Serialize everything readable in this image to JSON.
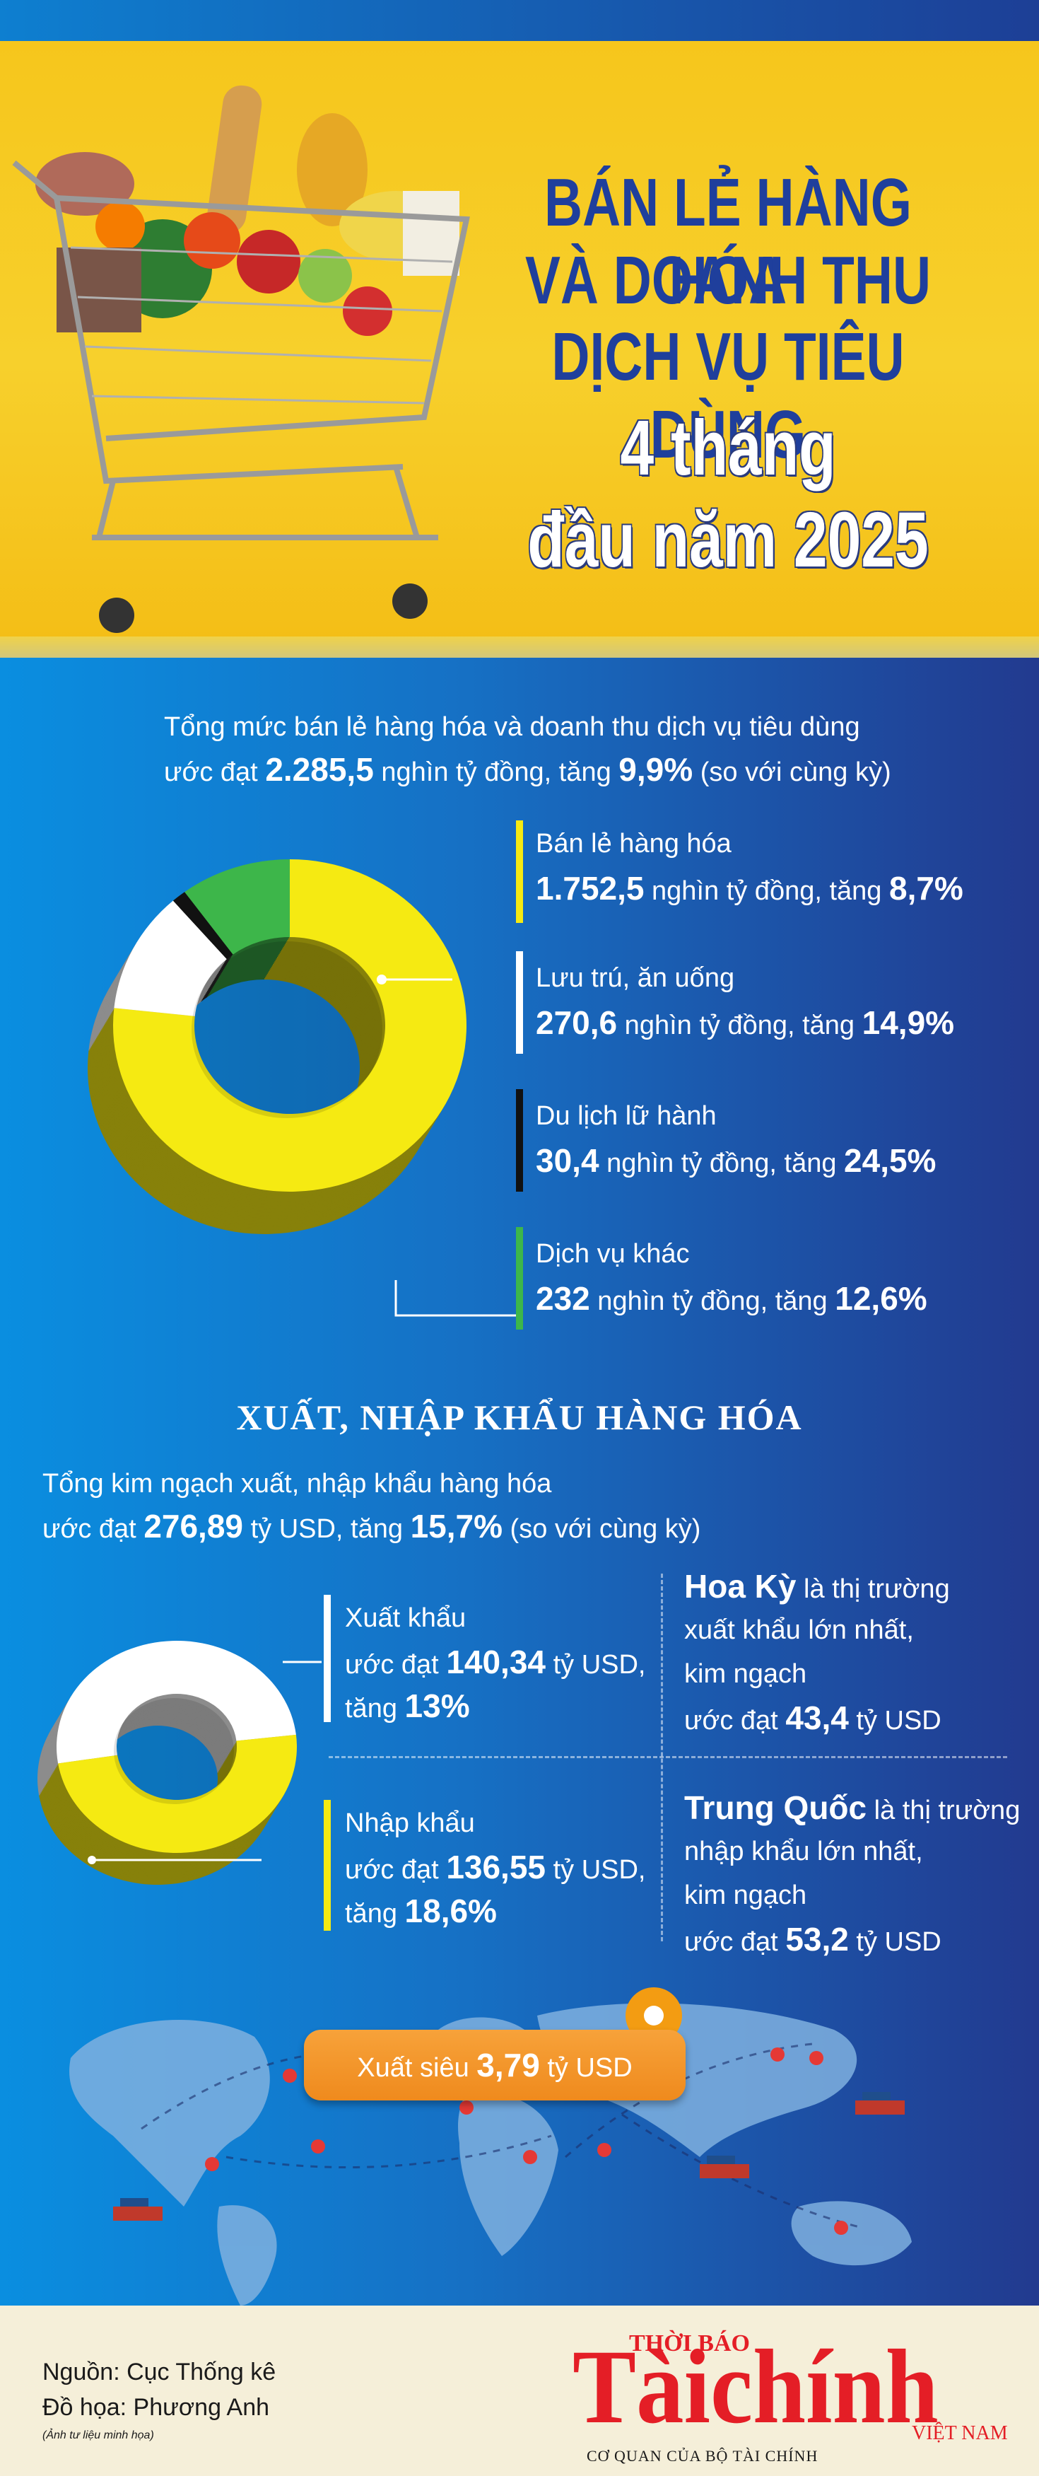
{
  "title": {
    "line1": "BÁN LẺ HÀNG HÓA",
    "line2": "VÀ DOANH THU",
    "line3": "DỊCH VỤ TIÊU DÙNG",
    "line4": "4 tháng",
    "line5": "đầu năm 2025"
  },
  "retail": {
    "summary_line1": "Tổng mức bán lẻ hàng hóa và doanh thu dịch vụ tiêu dùng",
    "summary_prefix": "ước đạt ",
    "summary_value": "2.285,5",
    "summary_mid": " nghìn tỷ đồng, tăng ",
    "summary_growth": "9,9%",
    "summary_suffix": " (so với cùng kỳ)",
    "items": [
      {
        "label": "Bán lẻ hàng hóa",
        "value": "1.752,5",
        "unit": " nghìn tỷ đồng, tăng ",
        "growth": "8,7%",
        "color": "#f5ea12"
      },
      {
        "label": "Lưu trú, ăn uống",
        "value": "270,6",
        "unit": " nghìn tỷ đồng, tăng ",
        "growth": "14,9%",
        "color": "#ffffff"
      },
      {
        "label": "Du lịch lữ hành",
        "value": "30,4",
        "unit": " nghìn tỷ đồng, tăng ",
        "growth": "24,5%",
        "color": "#111111"
      },
      {
        "label": "Dịch vụ khác",
        "value": "232",
        "unit": " nghìn tỷ đồng, tăng ",
        "growth": "12,6%",
        "color": "#3db64a"
      }
    ]
  },
  "trade": {
    "section_title": "XUẤT, NHẬP KHẨU HÀNG HÓA",
    "summary_line1": "Tổng kim ngạch xuất, nhập khẩu hàng hóa",
    "summary_prefix": "ước đạt ",
    "summary_value": "276,89",
    "summary_mid": " tỷ USD, tăng ",
    "summary_growth": "15,7%",
    "summary_suffix": " (so với cùng kỳ)",
    "export": {
      "label": "Xuất khẩu",
      "prefix": "ước đạt ",
      "value": "140,34",
      "unit": " tỷ USD,",
      "growth_prefix": "tăng ",
      "growth": "13%",
      "color": "#ffffff"
    },
    "import": {
      "label": "Nhập khẩu",
      "prefix": "ước đạt ",
      "value": "136,55",
      "unit": " tỷ USD,",
      "growth_prefix": "tăng ",
      "growth": "18,6%",
      "color": "#f5ea12"
    },
    "us": {
      "name": "Hoa Kỳ",
      "line1": " là thị trường",
      "line2": "xuất khẩu lớn nhất,",
      "line3": "kim ngạch",
      "line4_prefix": "ước đạt ",
      "value": "43,4",
      "unit": " tỷ USD"
    },
    "cn": {
      "name": "Trung Quốc",
      "line1": " là thị trường",
      "line2": "nhập khẩu lớn nhất,",
      "line3": "kim ngạch",
      "line4_prefix": "ước đạt ",
      "value": "53,2",
      "unit": " tỷ USD"
    },
    "surplus": {
      "prefix": "Xuất siêu ",
      "value": "3,79",
      "unit": " tỷ USD"
    }
  },
  "footer": {
    "source": "Nguồn: Cục Thống kê",
    "design": "Đồ họa: Phương Anh",
    "note": "(Ảnh tư liệu minh họa)",
    "logo_top": "THỜI BÁO",
    "logo_main": "Tàichính",
    "logo_country": "VIỆT NAM",
    "logo_sub": "CƠ QUAN CỦA BỘ TÀI CHÍNH"
  },
  "chart_data": [
    {
      "type": "pie",
      "title": "",
      "categories": [
        "Bán lẻ hàng hóa",
        "Lưu trú, ăn uống",
        "Du lịch lữ hành",
        "Dịch vụ khác"
      ],
      "values": [
        1752.5,
        270.6,
        30.4,
        232
      ],
      "unit": "nghìn tỷ đồng"
    },
    {
      "type": "pie",
      "title": "",
      "categories": [
        "Xuất khẩu",
        "Nhập khẩu"
      ],
      "values": [
        140.34,
        136.55
      ],
      "unit": "tỷ USD"
    }
  ]
}
